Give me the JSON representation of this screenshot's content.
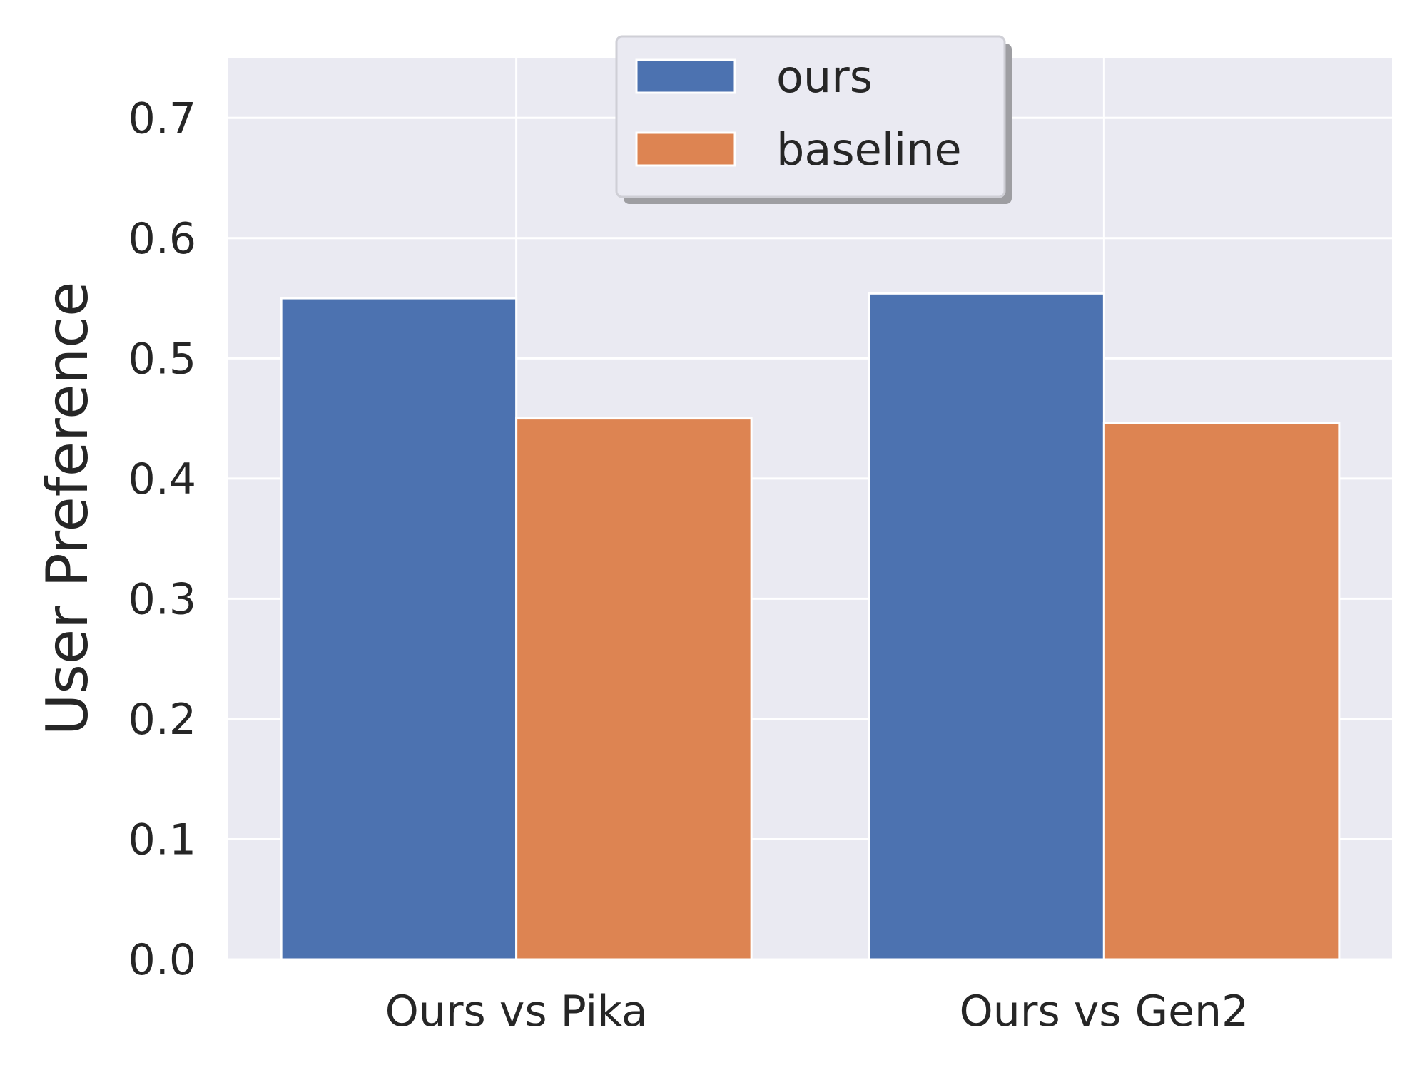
{
  "chart_data": {
    "type": "bar",
    "title": "",
    "xlabel": "",
    "ylabel": "User Preference",
    "categories": [
      "Ours vs Pika",
      "Ours vs Gen2"
    ],
    "series": [
      {
        "name": "ours",
        "values": [
          0.55,
          0.554
        ],
        "color": "#4c72b0"
      },
      {
        "name": "baseline",
        "values": [
          0.45,
          0.446
        ],
        "color": "#dd8452"
      }
    ],
    "ylim": [
      0,
      0.75
    ],
    "yticks": [
      "0.0",
      "0.1",
      "0.2",
      "0.3",
      "0.4",
      "0.5",
      "0.6",
      "0.7"
    ],
    "grid": true,
    "legend_placement": "upper-center",
    "background": "#eaeaf2"
  }
}
